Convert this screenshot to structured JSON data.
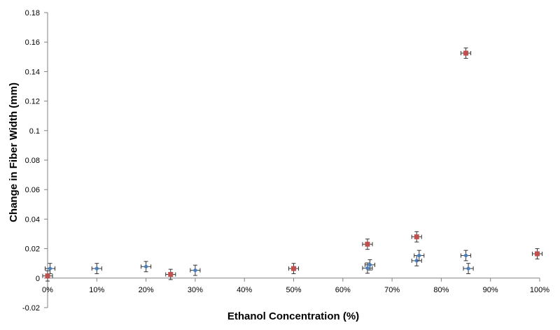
{
  "chart_data": {
    "type": "scatter",
    "xlabel": "Ethanol Concentration (%)",
    "ylabel": "Change in Fiber Width (mm)",
    "xlim": [
      0,
      100
    ],
    "ylim": [
      -0.02,
      0.18
    ],
    "x_ticks": [
      0,
      10,
      20,
      30,
      40,
      50,
      60,
      70,
      80,
      90,
      100
    ],
    "x_tick_labels": [
      "0%",
      "10%",
      "20%",
      "30%",
      "40%",
      "50%",
      "60%",
      "70%",
      "80%",
      "90%",
      "100%"
    ],
    "y_ticks": [
      -0.02,
      0,
      0.02,
      0.04,
      0.06,
      0.08,
      0.1,
      0.12,
      0.14,
      0.16,
      0.18
    ],
    "y_tick_labels": [
      "-0.02",
      "0",
      "0.02",
      "0.04",
      "0.06",
      "0.08",
      "0.1",
      "0.12",
      "0.14",
      "0.16",
      "0.18"
    ],
    "grid": false,
    "legend": "none",
    "series": [
      {
        "color": "#4a7ebb",
        "marker": "diamond",
        "points": [
          {
            "x": 0.5,
            "y": 0.0065,
            "xerr": 1.0,
            "yerr": 0.0035
          },
          {
            "x": 10,
            "y": 0.0065,
            "xerr": 1.0,
            "yerr": 0.0035
          },
          {
            "x": 20,
            "y": 0.0078,
            "xerr": 1.0,
            "yerr": 0.0035
          },
          {
            "x": 30,
            "y": 0.0053,
            "xerr": 1.0,
            "yerr": 0.0035
          },
          {
            "x": 65,
            "y": 0.0068,
            "xerr": 1.0,
            "yerr": 0.0035
          },
          {
            "x": 65.5,
            "y": 0.009,
            "xerr": 1.0,
            "yerr": 0.0035
          },
          {
            "x": 75,
            "y": 0.0118,
            "xerr": 1.0,
            "yerr": 0.0035
          },
          {
            "x": 75.5,
            "y": 0.0153,
            "xerr": 1.0,
            "yerr": 0.0035
          },
          {
            "x": 85,
            "y": 0.0153,
            "xerr": 1.0,
            "yerr": 0.0035
          },
          {
            "x": 85.5,
            "y": 0.0065,
            "xerr": 1.0,
            "yerr": 0.0035
          }
        ]
      },
      {
        "color": "#c0504d",
        "marker": "square",
        "points": [
          {
            "x": 0,
            "y": 0.0015,
            "xerr": 1.0,
            "yerr": 0.0035
          },
          {
            "x": 25,
            "y": 0.0025,
            "xerr": 1.0,
            "yerr": 0.0035
          },
          {
            "x": 50,
            "y": 0.0065,
            "xerr": 1.0,
            "yerr": 0.0035
          },
          {
            "x": 65,
            "y": 0.023,
            "xerr": 1.0,
            "yerr": 0.0035
          },
          {
            "x": 75,
            "y": 0.028,
            "xerr": 1.0,
            "yerr": 0.0035
          },
          {
            "x": 85,
            "y": 0.1525,
            "xerr": 1.0,
            "yerr": 0.0035
          },
          {
            "x": 99.5,
            "y": 0.0165,
            "xerr": 1.0,
            "yerr": 0.0035
          }
        ]
      }
    ]
  }
}
